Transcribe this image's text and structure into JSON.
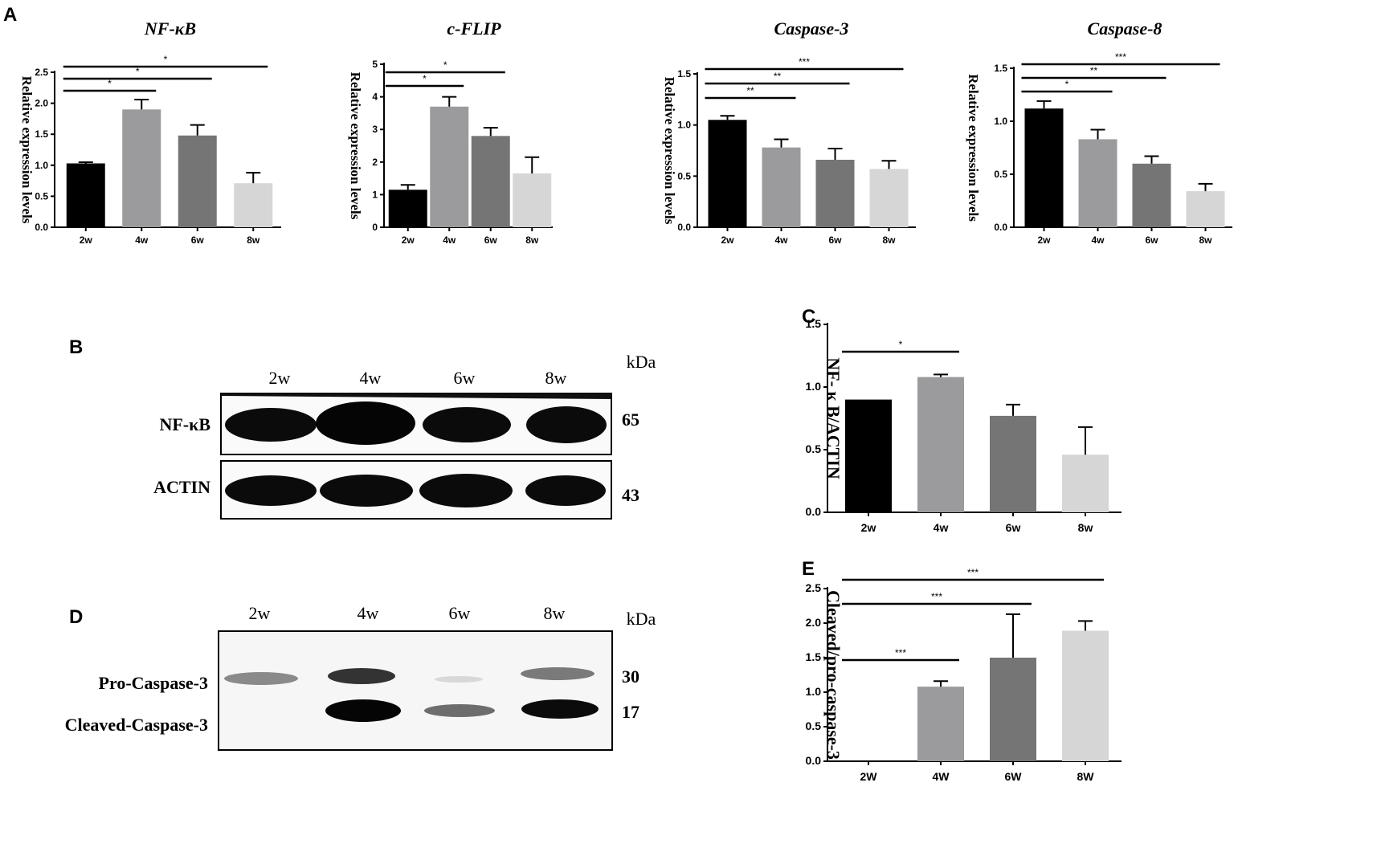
{
  "panels": {
    "A": "A",
    "B": "B",
    "C": "C",
    "D": "D",
    "E": "E"
  },
  "chart_data": [
    {
      "id": "A1",
      "type": "bar",
      "title": "NF-κB",
      "ylabel": "Relative expression levels",
      "categories": [
        "2w",
        "4w",
        "6w",
        "8w"
      ],
      "values": [
        1.03,
        1.9,
        1.48,
        0.71
      ],
      "errors": [
        0.02,
        0.16,
        0.17,
        0.17
      ],
      "colors": [
        "#000000",
        "#9b9b9e",
        "#757575",
        "#d6d6d6"
      ],
      "ylim": [
        0,
        2.5
      ],
      "yticks": [
        "0.0",
        "0.5",
        "1.0",
        "1.5",
        "2.0",
        "2.5"
      ],
      "significance": [
        {
          "from": 0,
          "to": 1,
          "label": "*"
        },
        {
          "from": 0,
          "to": 2,
          "label": "*"
        },
        {
          "from": 0,
          "to": 3,
          "label": "*"
        }
      ]
    },
    {
      "id": "A2",
      "type": "bar",
      "title": "c-FLIP",
      "ylabel": "Relative expression levels",
      "categories": [
        "2w",
        "4w",
        "6w",
        "8w"
      ],
      "values": [
        1.15,
        3.7,
        2.8,
        1.65
      ],
      "errors": [
        0.15,
        0.3,
        0.25,
        0.5
      ],
      "colors": [
        "#000000",
        "#9b9b9e",
        "#757575",
        "#d6d6d6"
      ],
      "ylim": [
        0,
        5
      ],
      "yticks": [
        "0",
        "1",
        "2",
        "3",
        "4",
        "5"
      ],
      "significance": [
        {
          "from": 0,
          "to": 1,
          "label": "*"
        },
        {
          "from": 0,
          "to": 2,
          "label": "*"
        }
      ]
    },
    {
      "id": "A3",
      "type": "bar",
      "title": "Caspase-3",
      "ylabel": "Relative expression levels",
      "categories": [
        "2w",
        "4w",
        "6w",
        "8w"
      ],
      "values": [
        1.05,
        0.78,
        0.66,
        0.57
      ],
      "errors": [
        0.04,
        0.08,
        0.11,
        0.08
      ],
      "colors": [
        "#000000",
        "#9b9b9e",
        "#757575",
        "#d6d6d6"
      ],
      "ylim": [
        0,
        1.5
      ],
      "yticks": [
        "0.0",
        "0.5",
        "1.0",
        "1.5"
      ],
      "significance": [
        {
          "from": 0,
          "to": 1,
          "label": "**"
        },
        {
          "from": 0,
          "to": 2,
          "label": "**"
        },
        {
          "from": 0,
          "to": 3,
          "label": "***"
        }
      ]
    },
    {
      "id": "A4",
      "type": "bar",
      "title": "Caspase-8",
      "ylabel": "Relative expression levels",
      "categories": [
        "2w",
        "4w",
        "6w",
        "8w"
      ],
      "values": [
        1.12,
        0.83,
        0.6,
        0.34
      ],
      "errors": [
        0.07,
        0.09,
        0.07,
        0.07
      ],
      "colors": [
        "#000000",
        "#9b9b9e",
        "#757575",
        "#d6d6d6"
      ],
      "ylim": [
        0,
        1.5
      ],
      "yticks": [
        "0.0",
        "0.5",
        "1.0",
        "1.5"
      ],
      "significance": [
        {
          "from": 0,
          "to": 1,
          "label": "*"
        },
        {
          "from": 0,
          "to": 2,
          "label": "**"
        },
        {
          "from": 0,
          "to": 3,
          "label": "***"
        }
      ]
    },
    {
      "id": "C",
      "type": "bar",
      "title": "",
      "ylabel": "NF- κ B/ACTIN",
      "categories": [
        "2w",
        "4w",
        "6w",
        "8w"
      ],
      "values": [
        0.9,
        1.08,
        0.77,
        0.46
      ],
      "errors": [
        0.0,
        0.02,
        0.09,
        0.22
      ],
      "colors": [
        "#000000",
        "#9b9b9e",
        "#757575",
        "#d6d6d6"
      ],
      "ylim": [
        0,
        1.5
      ],
      "yticks": [
        "0.0",
        "0.5",
        "1.0",
        "1.5"
      ],
      "significance": [
        {
          "from": 0,
          "to": 1,
          "label": "*"
        }
      ]
    },
    {
      "id": "E",
      "type": "bar",
      "title": "",
      "ylabel": "Cleaved/pro-caspase-3",
      "categories": [
        "2W",
        "4W",
        "6W",
        "8W"
      ],
      "values": [
        0.0,
        1.08,
        1.5,
        1.89
      ],
      "errors": [
        0.0,
        0.08,
        0.63,
        0.14
      ],
      "colors": [
        "#000000",
        "#9b9b9e",
        "#757575",
        "#d6d6d6"
      ],
      "ylim": [
        0,
        2.5
      ],
      "yticks": [
        "0.0",
        "0.5",
        "1.0",
        "1.5",
        "2.0",
        "2.5"
      ],
      "significance": [
        {
          "from": 0,
          "to": 1,
          "label": "***"
        },
        {
          "from": 0,
          "to": 2,
          "label": "***"
        },
        {
          "from": 0,
          "to": 3,
          "label": "***"
        }
      ]
    }
  ],
  "blots": {
    "B": {
      "lanes": [
        "2w",
        "4w",
        "6w",
        "8w"
      ],
      "unit": "kDa",
      "rows": [
        {
          "label": "NF-κB",
          "kda": "65"
        },
        {
          "label": "ACTIN",
          "kda": "43"
        }
      ]
    },
    "D": {
      "lanes": [
        "2w",
        "4w",
        "6w",
        "8w"
      ],
      "unit": "kDa",
      "rows": [
        {
          "label": "Pro-Caspase-3",
          "kda": "30"
        },
        {
          "label": "Cleaved-Caspase-3",
          "kda": "17"
        }
      ]
    }
  }
}
